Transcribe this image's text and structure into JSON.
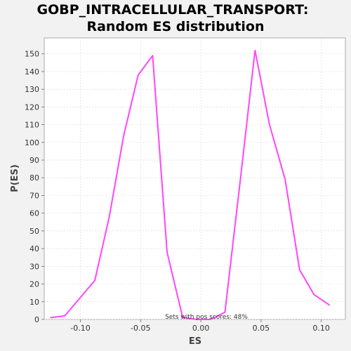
{
  "chart_data": {
    "type": "line",
    "title_line1": "GOBP_INTRACELLULAR_TRANSPORT:",
    "title_line2": "Random ES distribution",
    "xlabel": "ES",
    "ylabel": "P(ES)",
    "annotation": "Sets with pos scores: 48%",
    "xlim": [
      -0.13,
      0.12
    ],
    "ylim": [
      0,
      159
    ],
    "xticks": [
      -0.1,
      -0.05,
      0.0,
      0.05,
      0.1
    ],
    "xtick_labels": [
      "-0.10",
      "-0.05",
      "0.00",
      "0.05",
      "0.10"
    ],
    "yticks": [
      0,
      10,
      20,
      30,
      40,
      50,
      60,
      70,
      80,
      90,
      100,
      110,
      120,
      130,
      140,
      150
    ],
    "ytick_labels": [
      "0",
      "10",
      "20",
      "30",
      "40",
      "50",
      "60",
      "70",
      "80",
      "90",
      "100",
      "110",
      "120",
      "130",
      "140",
      "150"
    ],
    "grid": true,
    "line_color": "#ff44ff",
    "series": [
      {
        "x": [
          -0.125,
          -0.113,
          -0.088,
          -0.076,
          -0.064,
          -0.052,
          -0.04,
          -0.028,
          -0.015,
          -0.003,
          0.008,
          0.02,
          0.033,
          0.045,
          0.057,
          0.07,
          0.082,
          0.094,
          0.107
        ],
        "y": [
          1,
          2,
          22,
          58,
          104,
          138,
          149,
          38,
          1,
          0,
          0,
          4,
          80,
          152,
          110,
          79,
          28,
          14,
          8
        ]
      }
    ]
  }
}
